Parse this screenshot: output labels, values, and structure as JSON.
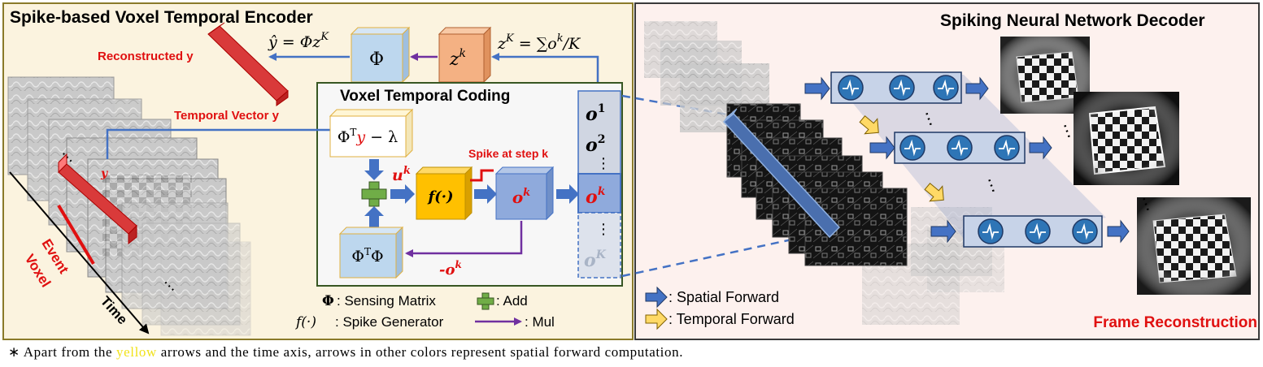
{
  "left_panel": {
    "title": "Spike-based Voxel Temporal Encoder",
    "reconstructed_label": "Reconstructed y",
    "temporal_vector_label": "Temporal Vector y",
    "y_marker": "y",
    "event_voxel_label_1": "Event",
    "event_voxel_label_2": "Voxel",
    "time_label": "Time",
    "y_hat_eq": "ŷ = Φz",
    "y_hat_sup": "K",
    "phi_box": "Φ",
    "zk_box": "z",
    "zk_sup": "k",
    "zK_eq_pre": "z",
    "zK_eq_sup": "K",
    "zK_eq_post": " = ∑o",
    "zK_eq_sup2": "k",
    "zK_eq_tail": "/K"
  },
  "coding_box": {
    "title": "Voxel Temporal Coding",
    "phiT_y_lambda_pre": "Φ",
    "phiT_sup": "T",
    "phiT_y": "y",
    "phiT_tail": " − λ",
    "uk_label": "u",
    "uk_sup": "k",
    "spike_label": "Spike at step k",
    "f_box": "f(·)",
    "ok_box": "o",
    "ok_sup": "k",
    "phiT_phi": "Φ",
    "phiT_phi_sup": "T",
    "phiT_phi_tail": "Φ",
    "neg_ok": "-o",
    "neg_ok_sup": "k"
  },
  "output_vector": {
    "o1": "o",
    "o1_sup": "1",
    "o2": "o",
    "o2_sup": "2",
    "vdots": "⋮",
    "ok": "o",
    "ok_sup": "k",
    "vdots2": "⋮",
    "oK": "o",
    "oK_sup": "K"
  },
  "legend_left": {
    "phi_sym": "Φ",
    "phi_text": ": Sensing Matrix",
    "add_text": ": Add",
    "f_sym": "f(·)",
    "f_text": ": Spike Generator",
    "mul_text": ": Mul"
  },
  "right_panel": {
    "title": "Spiking Neural Network Decoder",
    "spatial_forward": ": Spatial Forward",
    "temporal_forward": ": Temporal Forward",
    "frame_reconstruction": "Frame Reconstruction",
    "dots": "⋯"
  },
  "footnote": {
    "pre": "∗ Apart from the ",
    "highlight": "yellow",
    "post": " arrows and the time axis, arrows in other colors represent spatial forward computation."
  },
  "colors": {
    "left_bg": "#fbf3df",
    "right_bg": "#fdf1ee",
    "panel_border": "#8a7a2a",
    "blue_arrow": "#4472c4",
    "purple_arrow": "#7030a0",
    "red_text": "#e01010",
    "orange_box": "#f4b183",
    "yellow_box": "#ffc000",
    "blue_box": "#bdd7ee",
    "ok_box": "#8faadc",
    "neuron_blue": "#2e75b6",
    "neuron_row": "#c7d3e8",
    "temporal_arrow": "#ffd966",
    "green_plus": "#70ad47"
  },
  "icons": {
    "neuron": "neuron-spike-icon",
    "add": "plus-icon"
  }
}
